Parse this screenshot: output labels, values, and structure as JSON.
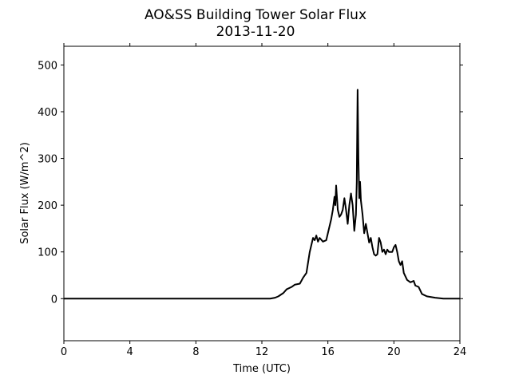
{
  "chart_data": {
    "type": "line",
    "title": "AO&SS Building Tower Solar Flux",
    "subtitle": "2013-11-20",
    "x_label": "Time (UTC)",
    "y_label": "Solar Flux (W/m^2)",
    "xlim": [
      0,
      24
    ],
    "xticks": [
      0,
      4,
      8,
      12,
      16,
      20,
      24
    ],
    "ylim": [
      -90,
      540
    ],
    "yticks": [
      0,
      100,
      200,
      300,
      400,
      500
    ],
    "x": [
      0,
      12.5,
      12.8,
      13.0,
      13.3,
      13.5,
      13.8,
      14.0,
      14.3,
      14.5,
      14.7,
      14.9,
      15.1,
      15.2,
      15.3,
      15.4,
      15.5,
      15.7,
      15.9,
      16.0,
      16.2,
      16.3,
      16.4,
      16.45,
      16.5,
      16.6,
      16.7,
      16.8,
      16.9,
      17.0,
      17.1,
      17.2,
      17.3,
      17.4,
      17.5,
      17.6,
      17.7,
      17.75,
      17.8,
      17.85,
      17.9,
      17.95,
      18.0,
      18.1,
      18.2,
      18.3,
      18.4,
      18.5,
      18.6,
      18.7,
      18.8,
      18.9,
      19.0,
      19.1,
      19.2,
      19.3,
      19.4,
      19.5,
      19.6,
      19.7,
      19.8,
      19.9,
      20.0,
      20.1,
      20.2,
      20.3,
      20.4,
      20.5,
      20.6,
      20.8,
      21.0,
      21.2,
      21.3,
      21.5,
      21.7,
      22.0,
      22.5,
      23.0,
      24
    ],
    "series": [
      {
        "color": "#000000",
        "values": [
          0,
          0,
          2,
          5,
          12,
          20,
          25,
          30,
          32,
          45,
          55,
          100,
          130,
          125,
          135,
          122,
          130,
          122,
          125,
          140,
          170,
          190,
          218,
          200,
          242,
          190,
          175,
          180,
          190,
          215,
          190,
          160,
          200,
          225,
          200,
          145,
          180,
          250,
          447,
          300,
          215,
          250,
          210,
          180,
          140,
          160,
          140,
          120,
          130,
          110,
          95,
          92,
          95,
          130,
          120,
          100,
          105,
          95,
          105,
          100,
          100,
          100,
          110,
          115,
          100,
          80,
          72,
          80,
          55,
          40,
          35,
          38,
          28,
          25,
          10,
          5,
          2,
          0,
          0
        ]
      }
    ]
  }
}
